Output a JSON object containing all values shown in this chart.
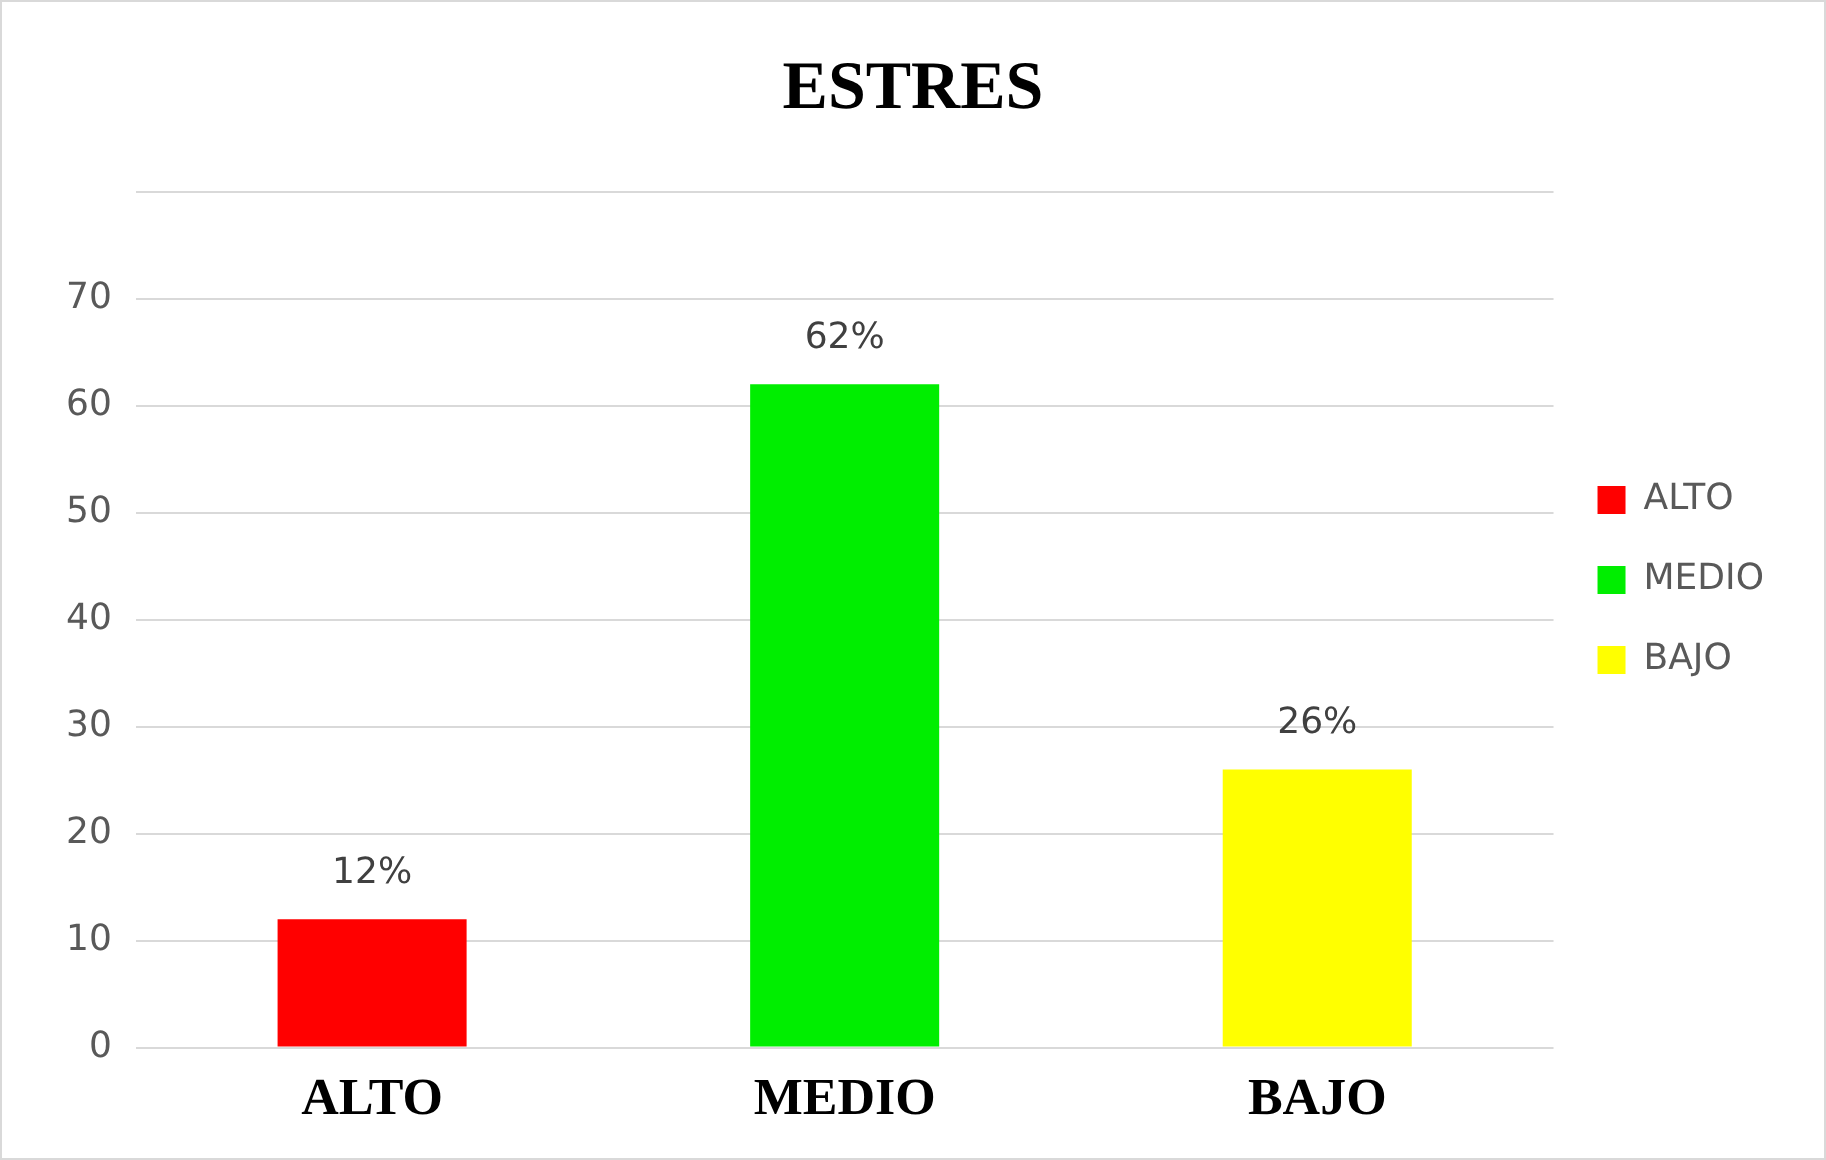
{
  "chart_data": {
    "type": "bar",
    "title": "ESTRES",
    "categories": [
      "ALTO",
      "MEDIO",
      "BAJO"
    ],
    "series": [
      {
        "name": "ALTO",
        "color": "#ff0000",
        "values": [
          12,
          null,
          null
        ],
        "value_labels": [
          "12%",
          null,
          null
        ]
      },
      {
        "name": "MEDIO",
        "color": "#00ee00",
        "values": [
          null,
          62,
          null
        ],
        "value_labels": [
          null,
          "62%",
          null
        ]
      },
      {
        "name": "BAJO",
        "color": "#ffff00",
        "values": [
          null,
          null,
          26
        ],
        "value_labels": [
          null,
          null,
          "26%"
        ]
      }
    ],
    "ylim": [
      0,
      80
    ],
    "yticks": [
      0,
      10,
      20,
      30,
      40,
      50,
      60,
      70,
      {
        "value": 80,
        "label": null
      }
    ],
    "grid": "y",
    "legend": "right"
  }
}
